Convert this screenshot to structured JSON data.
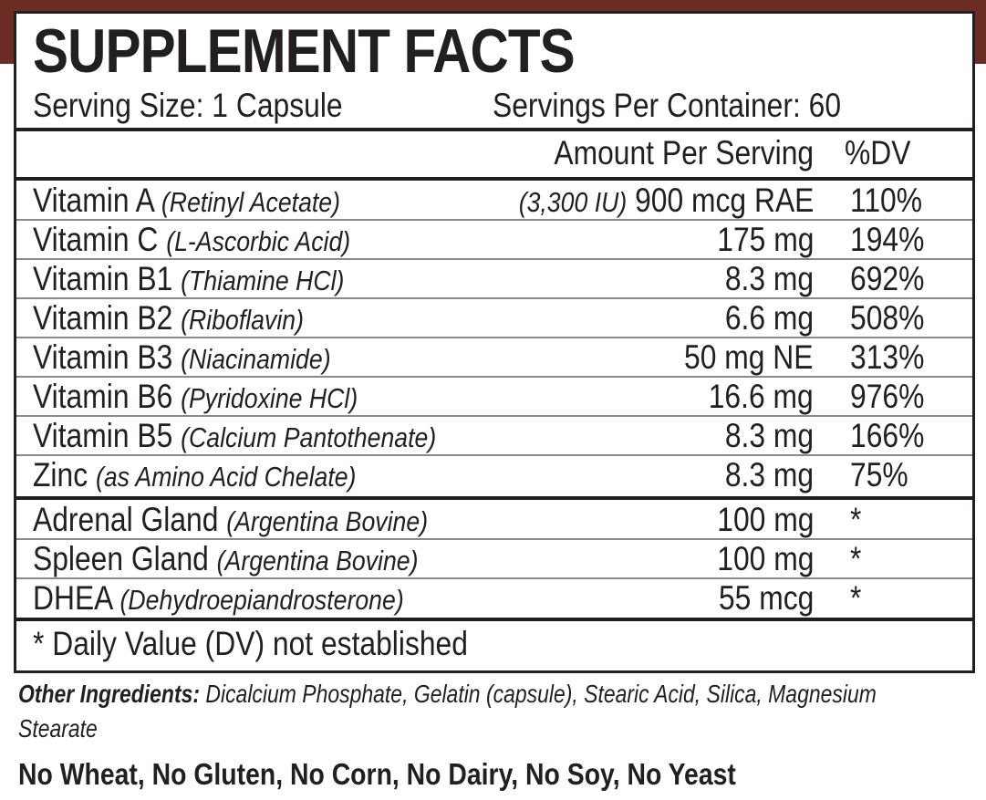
{
  "title": "SUPPLEMENT FACTS",
  "serving_size": "Serving Size: 1 Capsule",
  "servings_per_container": "Servings Per Container: 60",
  "header": {
    "amount": "Amount Per Serving",
    "dv": "%DV"
  },
  "vitamins": [
    {
      "name": "Vitamin A",
      "source": "(Retinyl Acetate)",
      "amount_note": "(3,300 IU)",
      "amount": "900 mcg RAE",
      "dv": "110%"
    },
    {
      "name": "Vitamin C",
      "source": "(L-Ascorbic Acid)",
      "amount": "175 mg",
      "dv": "194%"
    },
    {
      "name": "Vitamin B1",
      "source": "(Thiamine HCl)",
      "amount": "8.3 mg",
      "dv": "692%"
    },
    {
      "name": "Vitamin B2",
      "source": "(Riboflavin)",
      "amount": "6.6 mg",
      "dv": "508%"
    },
    {
      "name": "Vitamin B3",
      "source": "(Niacinamide)",
      "amount": "50 mg NE",
      "dv": "313%"
    },
    {
      "name": "Vitamin B6",
      "source": "(Pyridoxine HCl)",
      "amount": "16.6 mg",
      "dv": "976%"
    },
    {
      "name": "Vitamin B5",
      "source": "(Calcium Pantothenate)",
      "amount": "8.3 mg",
      "dv": "166%"
    },
    {
      "name": "Zinc",
      "source": "(as Amino Acid Chelate)",
      "amount": "8.3 mg",
      "dv": "75%"
    }
  ],
  "others": [
    {
      "name": "Adrenal Gland",
      "source": "(Argentina Bovine)",
      "amount": "100 mg",
      "dv": "*"
    },
    {
      "name": "Spleen Gland",
      "source": "(Argentina Bovine)",
      "amount": "100 mg",
      "dv": "*"
    },
    {
      "name": "DHEA",
      "source": "(Dehydroepiandrosterone)",
      "amount": "55 mcg",
      "dv": "*"
    }
  ],
  "footnote": "* Daily Value (DV) not established",
  "other_ingredients": {
    "label": "Other Ingredients:",
    "text": "Dicalcium Phosphate, Gelatin (capsule), Stearic Acid, Silica, Magnesium Stearate"
  },
  "allergen_statement": "No Wheat, No Gluten, No Corn, No Dairy, No Soy, No Yeast",
  "colors": {
    "band": "#6b2d23",
    "text": "#231f20"
  }
}
